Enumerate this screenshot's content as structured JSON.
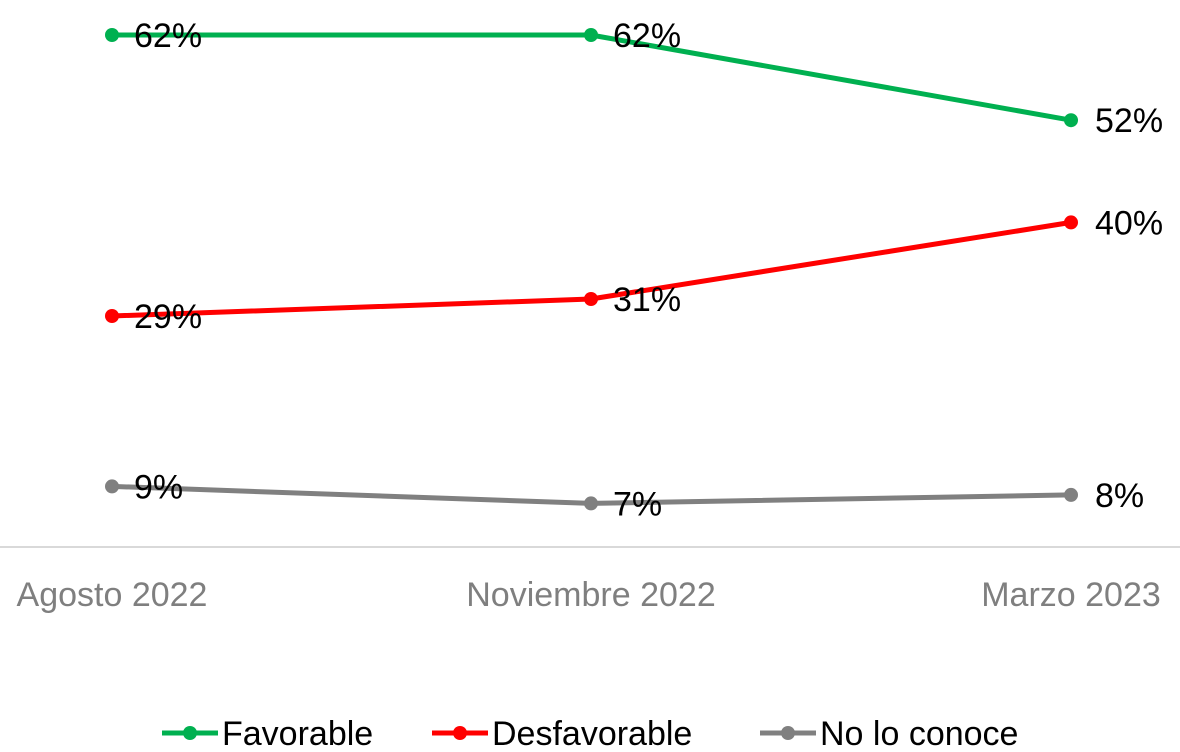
{
  "chart_data": {
    "type": "line",
    "x": [
      "Agosto 2022",
      "Noviembre 2022",
      "Marzo 2023"
    ],
    "series": [
      {
        "name": "Favorable",
        "color": "#00b050",
        "values": [
          62,
          62,
          52
        ],
        "labels": [
          "62%",
          "62%",
          "52%"
        ]
      },
      {
        "name": "Desfavorable",
        "color": "#ff0000",
        "values": [
          29,
          31,
          40
        ],
        "labels": [
          "29%",
          "31%",
          "40%"
        ]
      },
      {
        "name": "No lo conoce",
        "color": "#808080",
        "values": [
          9,
          7,
          8
        ],
        "labels": [
          "9%",
          "7%",
          "8%"
        ]
      }
    ],
    "title": "",
    "xlabel": "",
    "ylabel": "",
    "ylim": [
      0,
      64
    ],
    "grid": false,
    "legend": "bottom"
  }
}
